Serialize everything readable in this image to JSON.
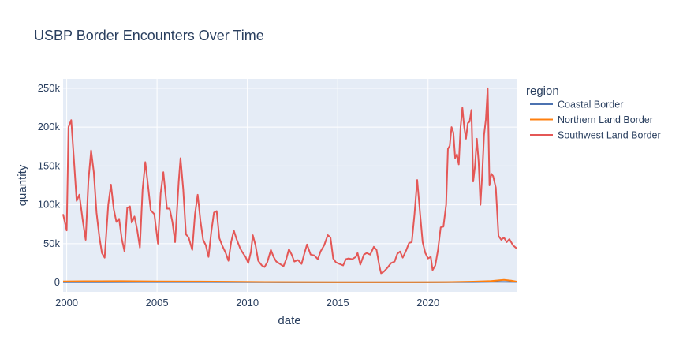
{
  "chart_data": {
    "type": "line",
    "title": "USBP Border Encounters Over Time",
    "xlabel": "date",
    "ylabel": "quantity",
    "xlim": [
      1999.8,
      2024.9
    ],
    "ylim": [
      -12000,
      262000
    ],
    "x_ticks": [
      2000,
      2005,
      2010,
      2015,
      2020
    ],
    "x_tick_labels": [
      "2000",
      "2005",
      "2010",
      "2015",
      "2020"
    ],
    "y_ticks": [
      0,
      50000,
      100000,
      150000,
      200000,
      250000
    ],
    "y_tick_labels": [
      "0",
      "50k",
      "100k",
      "150k",
      "200k",
      "250k"
    ],
    "grid": true,
    "legend": {
      "title": "region",
      "position": "right"
    },
    "series": [
      {
        "name": "Coastal Border",
        "color": "#4c72b0",
        "points": [
          [
            1999.8,
            400
          ],
          [
            2004,
            500
          ],
          [
            2008,
            600
          ],
          [
            2012,
            350
          ],
          [
            2016,
            300
          ],
          [
            2020,
            300
          ],
          [
            2022.5,
            500
          ],
          [
            2023.5,
            800
          ],
          [
            2024.9,
            700
          ]
        ]
      },
      {
        "name": "Northern Land Border",
        "color": "#ff7f0e",
        "points": [
          [
            1999.8,
            1500
          ],
          [
            2001,
            1700
          ],
          [
            2003,
            1800
          ],
          [
            2005,
            1500
          ],
          [
            2007,
            1300
          ],
          [
            2009,
            1100
          ],
          [
            2011,
            700
          ],
          [
            2013,
            500
          ],
          [
            2015,
            400
          ],
          [
            2017,
            400
          ],
          [
            2019,
            400
          ],
          [
            2021,
            600
          ],
          [
            2022.5,
            1200
          ],
          [
            2023.5,
            2000
          ],
          [
            2024.2,
            3500
          ],
          [
            2024.6,
            2500
          ],
          [
            2024.9,
            1200
          ]
        ]
      },
      {
        "name": "Southwest Land Border",
        "color": "#e45756",
        "points": [
          [
            1999.8,
            88000
          ],
          [
            2000.0,
            67000
          ],
          [
            2000.1,
            200000
          ],
          [
            2000.25,
            209000
          ],
          [
            2000.4,
            158000
          ],
          [
            2000.55,
            105000
          ],
          [
            2000.7,
            113000
          ],
          [
            2000.9,
            78000
          ],
          [
            2001.05,
            55000
          ],
          [
            2001.2,
            130000
          ],
          [
            2001.35,
            170000
          ],
          [
            2001.5,
            142000
          ],
          [
            2001.65,
            90000
          ],
          [
            2001.8,
            60000
          ],
          [
            2001.95,
            38000
          ],
          [
            2002.1,
            32000
          ],
          [
            2002.3,
            100000
          ],
          [
            2002.45,
            126000
          ],
          [
            2002.6,
            95000
          ],
          [
            2002.75,
            78000
          ],
          [
            2002.9,
            82000
          ],
          [
            2003.05,
            56000
          ],
          [
            2003.2,
            40000
          ],
          [
            2003.35,
            96000
          ],
          [
            2003.5,
            98000
          ],
          [
            2003.6,
            77000
          ],
          [
            2003.75,
            85000
          ],
          [
            2003.9,
            68000
          ],
          [
            2004.05,
            45000
          ],
          [
            2004.2,
            120000
          ],
          [
            2004.35,
            155000
          ],
          [
            2004.5,
            125000
          ],
          [
            2004.65,
            93000
          ],
          [
            2004.85,
            88000
          ],
          [
            2005.05,
            50000
          ],
          [
            2005.2,
            115000
          ],
          [
            2005.35,
            142000
          ],
          [
            2005.55,
            95000
          ],
          [
            2005.7,
            95000
          ],
          [
            2005.85,
            78000
          ],
          [
            2006.0,
            52000
          ],
          [
            2006.2,
            130000
          ],
          [
            2006.3,
            160000
          ],
          [
            2006.45,
            120000
          ],
          [
            2006.6,
            62000
          ],
          [
            2006.75,
            58000
          ],
          [
            2006.95,
            42000
          ],
          [
            2007.1,
            88000
          ],
          [
            2007.25,
            113000
          ],
          [
            2007.4,
            80000
          ],
          [
            2007.55,
            55000
          ],
          [
            2007.7,
            48000
          ],
          [
            2007.85,
            33000
          ],
          [
            2008.0,
            65000
          ],
          [
            2008.15,
            90000
          ],
          [
            2008.3,
            92000
          ],
          [
            2008.45,
            57000
          ],
          [
            2008.6,
            48000
          ],
          [
            2008.8,
            38000
          ],
          [
            2008.95,
            28000
          ],
          [
            2009.1,
            52000
          ],
          [
            2009.25,
            67000
          ],
          [
            2009.4,
            56000
          ],
          [
            2009.6,
            44000
          ],
          [
            2009.75,
            38000
          ],
          [
            2009.9,
            33000
          ],
          [
            2010.05,
            25000
          ],
          [
            2010.2,
            40000
          ],
          [
            2010.3,
            61000
          ],
          [
            2010.45,
            48000
          ],
          [
            2010.6,
            28000
          ],
          [
            2010.8,
            22000
          ],
          [
            2010.95,
            20000
          ],
          [
            2011.1,
            26000
          ],
          [
            2011.3,
            42000
          ],
          [
            2011.45,
            33000
          ],
          [
            2011.6,
            27000
          ],
          [
            2011.8,
            24000
          ],
          [
            2012.0,
            21000
          ],
          [
            2012.15,
            30000
          ],
          [
            2012.3,
            43000
          ],
          [
            2012.45,
            36000
          ],
          [
            2012.6,
            27000
          ],
          [
            2012.8,
            29000
          ],
          [
            2013.0,
            24000
          ],
          [
            2013.15,
            37000
          ],
          [
            2013.3,
            49000
          ],
          [
            2013.5,
            36000
          ],
          [
            2013.7,
            35000
          ],
          [
            2013.9,
            30000
          ],
          [
            2014.05,
            40000
          ],
          [
            2014.25,
            48000
          ],
          [
            2014.45,
            61000
          ],
          [
            2014.6,
            58000
          ],
          [
            2014.75,
            31000
          ],
          [
            2014.9,
            26000
          ],
          [
            2015.1,
            24000
          ],
          [
            2015.3,
            22000
          ],
          [
            2015.45,
            30000
          ],
          [
            2015.6,
            31000
          ],
          [
            2015.8,
            30000
          ],
          [
            2016.0,
            33000
          ],
          [
            2016.1,
            38000
          ],
          [
            2016.25,
            23000
          ],
          [
            2016.45,
            36000
          ],
          [
            2016.6,
            38000
          ],
          [
            2016.8,
            36000
          ],
          [
            2017.0,
            46000
          ],
          [
            2017.15,
            42000
          ],
          [
            2017.3,
            22000
          ],
          [
            2017.4,
            12000
          ],
          [
            2017.55,
            14000
          ],
          [
            2017.75,
            19000
          ],
          [
            2017.95,
            25000
          ],
          [
            2018.15,
            27000
          ],
          [
            2018.3,
            37000
          ],
          [
            2018.45,
            40000
          ],
          [
            2018.6,
            32000
          ],
          [
            2018.8,
            42000
          ],
          [
            2018.95,
            51000
          ],
          [
            2019.1,
            52000
          ],
          [
            2019.25,
            88000
          ],
          [
            2019.4,
            132000
          ],
          [
            2019.55,
            91000
          ],
          [
            2019.7,
            52000
          ],
          [
            2019.85,
            38000
          ],
          [
            2020.0,
            31000
          ],
          [
            2020.15,
            33000
          ],
          [
            2020.25,
            16000
          ],
          [
            2020.4,
            22000
          ],
          [
            2020.55,
            42000
          ],
          [
            2020.7,
            71000
          ],
          [
            2020.85,
            72000
          ],
          [
            2021.0,
            100000
          ],
          [
            2021.1,
            172000
          ],
          [
            2021.2,
            176000
          ],
          [
            2021.3,
            200000
          ],
          [
            2021.4,
            193000
          ],
          [
            2021.5,
            160000
          ],
          [
            2021.6,
            165000
          ],
          [
            2021.7,
            152000
          ],
          [
            2021.8,
            200000
          ],
          [
            2021.9,
            225000
          ],
          [
            2022.0,
            200000
          ],
          [
            2022.1,
            185000
          ],
          [
            2022.2,
            205000
          ],
          [
            2022.3,
            207000
          ],
          [
            2022.4,
            222000
          ],
          [
            2022.5,
            130000
          ],
          [
            2022.6,
            150000
          ],
          [
            2022.7,
            185000
          ],
          [
            2022.8,
            155000
          ],
          [
            2022.9,
            100000
          ],
          [
            2023.0,
            140000
          ],
          [
            2023.1,
            190000
          ],
          [
            2023.2,
            210000
          ],
          [
            2023.3,
            250000
          ],
          [
            2023.4,
            125000
          ],
          [
            2023.5,
            140000
          ],
          [
            2023.6,
            137000
          ],
          [
            2023.75,
            122000
          ],
          [
            2023.9,
            60000
          ],
          [
            2024.05,
            55000
          ],
          [
            2024.2,
            58000
          ],
          [
            2024.35,
            52000
          ],
          [
            2024.5,
            56000
          ],
          [
            2024.7,
            48000
          ],
          [
            2024.9,
            44000
          ]
        ]
      }
    ]
  }
}
